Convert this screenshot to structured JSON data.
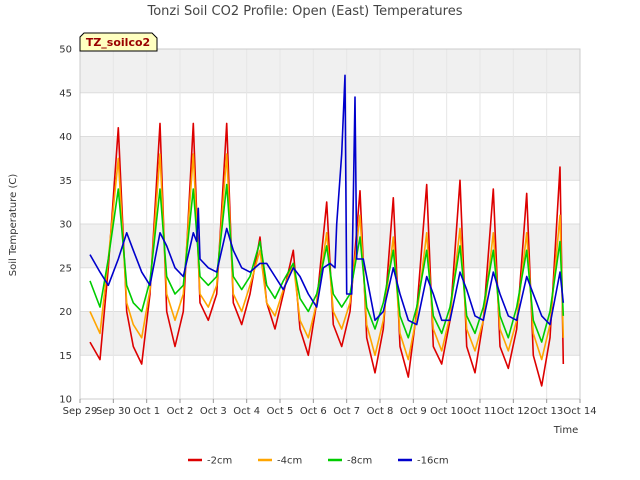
{
  "chart_data": {
    "type": "line",
    "title": "Tonzi Soil CO2 Profile: Open (East) Temperatures",
    "xlabel": "Time",
    "ylabel": "Soil Temperature (C)",
    "badge": "TZ_soilco2",
    "ylim": [
      10,
      50
    ],
    "yticks": [
      10,
      15,
      20,
      25,
      30,
      35,
      40,
      45,
      50
    ],
    "xlim": [
      0,
      15
    ],
    "xticks": [
      {
        "x": 0,
        "label": "Sep 29"
      },
      {
        "x": 1,
        "label": "Sep 30"
      },
      {
        "x": 2,
        "label": "Oct 1"
      },
      {
        "x": 3,
        "label": "Oct 2"
      },
      {
        "x": 4,
        "label": "Oct 3"
      },
      {
        "x": 5,
        "label": "Oct 4"
      },
      {
        "x": 6,
        "label": "Oct 5"
      },
      {
        "x": 7,
        "label": "Oct 6"
      },
      {
        "x": 8,
        "label": "Oct 7"
      },
      {
        "x": 9,
        "label": "Oct 8"
      },
      {
        "x": 10,
        "label": "Oct 9"
      },
      {
        "x": 11,
        "label": "Oct 10"
      },
      {
        "x": 12,
        "label": "Oct 11"
      },
      {
        "x": 13,
        "label": "Oct 12"
      },
      {
        "x": 14,
        "label": "Oct 13"
      },
      {
        "x": 15,
        "label": "Oct 14"
      }
    ],
    "grid": true,
    "legend_position": "bottom",
    "series": [
      {
        "name": "-2cm",
        "color": "#dd0000",
        "x": [
          0.3,
          0.6,
          0.85,
          1.15,
          1.4,
          1.6,
          1.85,
          2.1,
          2.4,
          2.6,
          2.85,
          3.1,
          3.4,
          3.6,
          3.85,
          4.1,
          4.4,
          4.6,
          4.85,
          5.1,
          5.4,
          5.6,
          5.85,
          6.1,
          6.4,
          6.6,
          6.85,
          7.1,
          7.4,
          7.6,
          7.85,
          8.1,
          8.4,
          8.6,
          8.85,
          9.1,
          9.4,
          9.6,
          9.85,
          10.1,
          10.4,
          10.6,
          10.85,
          11.1,
          11.4,
          11.6,
          11.85,
          12.1,
          12.4,
          12.6,
          12.85,
          13.1,
          13.4,
          13.6,
          13.85,
          14.1,
          14.4,
          14.5
        ],
        "y": [
          16.5,
          14.5,
          25,
          41,
          20,
          16,
          14,
          22,
          41.5,
          20,
          16,
          20,
          41.5,
          21,
          19,
          22,
          41.5,
          21,
          18.5,
          22,
          28.5,
          21,
          18,
          22,
          27,
          18,
          15,
          21,
          32.5,
          18.5,
          16,
          20,
          33.8,
          17,
          13,
          18,
          33,
          16,
          12.5,
          20,
          34.5,
          16,
          14,
          19,
          35,
          16,
          13,
          19,
          34,
          16,
          13.5,
          18,
          33.5,
          15,
          11.5,
          17,
          36.5,
          14
        ]
      },
      {
        "name": "-4cm",
        "color": "#ffa500",
        "x": [
          0.3,
          0.6,
          0.85,
          1.15,
          1.4,
          1.6,
          1.85,
          2.1,
          2.4,
          2.6,
          2.85,
          3.1,
          3.4,
          3.6,
          3.85,
          4.1,
          4.4,
          4.6,
          4.85,
          5.1,
          5.4,
          5.6,
          5.85,
          6.1,
          6.4,
          6.6,
          6.85,
          7.1,
          7.4,
          7.6,
          7.85,
          8.1,
          8.4,
          8.6,
          8.85,
          9.1,
          9.4,
          9.6,
          9.85,
          10.1,
          10.4,
          10.6,
          10.85,
          11.1,
          11.4,
          11.6,
          11.85,
          12.1,
          12.4,
          12.6,
          12.85,
          13.1,
          13.4,
          13.6,
          13.85,
          14.1,
          14.4,
          14.5
        ],
        "y": [
          20,
          17.5,
          26,
          37.5,
          21,
          18.5,
          17,
          22.5,
          38,
          22,
          19,
          22,
          38,
          22,
          20.5,
          23,
          38,
          22,
          20,
          23,
          27,
          21,
          19.5,
          22.5,
          25.5,
          19,
          17,
          21,
          29,
          20,
          18,
          21,
          31,
          18.5,
          15,
          19,
          28.5,
          17.5,
          14.5,
          19.5,
          29,
          18,
          15.5,
          19.5,
          29.5,
          18,
          15.5,
          19,
          29,
          18,
          15.5,
          19,
          29,
          17.5,
          14.5,
          18.5,
          31,
          17
        ]
      },
      {
        "name": "-8cm",
        "color": "#00cc00",
        "x": [
          0.3,
          0.6,
          0.85,
          1.15,
          1.4,
          1.6,
          1.85,
          2.1,
          2.4,
          2.6,
          2.85,
          3.1,
          3.4,
          3.6,
          3.85,
          4.1,
          4.4,
          4.6,
          4.85,
          5.1,
          5.4,
          5.6,
          5.85,
          6.1,
          6.4,
          6.6,
          6.85,
          7.1,
          7.4,
          7.6,
          7.85,
          8.1,
          8.4,
          8.6,
          8.85,
          9.1,
          9.4,
          9.6,
          9.85,
          10.1,
          10.4,
          10.6,
          10.85,
          11.1,
          11.4,
          11.6,
          11.85,
          12.1,
          12.4,
          12.6,
          12.85,
          13.1,
          13.4,
          13.6,
          13.85,
          14.1,
          14.4,
          14.5
        ],
        "y": [
          23.5,
          20.5,
          26,
          34,
          23,
          21,
          20,
          23.5,
          34,
          24,
          22,
          23,
          34,
          24,
          23,
          24,
          34.5,
          24,
          22.5,
          24,
          28,
          23,
          21.5,
          23.5,
          25.5,
          21.5,
          20,
          22,
          27.5,
          22,
          20.5,
          22,
          28.5,
          20.5,
          18,
          21,
          27,
          19.5,
          17,
          20.5,
          27,
          19.5,
          17.5,
          20.5,
          27.5,
          19.5,
          17.5,
          20.5,
          27,
          19.5,
          17,
          20.5,
          27,
          19,
          16.5,
          20,
          28,
          19.5
        ]
      },
      {
        "name": "-16cm",
        "color": "#0000cc",
        "x": [
          0.3,
          0.6,
          0.85,
          1.15,
          1.4,
          1.6,
          1.85,
          2.1,
          2.4,
          2.6,
          2.85,
          3.1,
          3.4,
          3.5,
          3.55,
          3.6,
          3.85,
          4.1,
          4.4,
          4.6,
          4.85,
          5.1,
          5.4,
          5.6,
          5.85,
          6.1,
          6.4,
          6.6,
          6.85,
          7.1,
          7.3,
          7.5,
          7.65,
          7.7,
          7.85,
          7.95,
          8.0,
          8.05,
          8.15,
          8.25,
          8.3,
          8.5,
          8.85,
          9.1,
          9.4,
          9.6,
          9.85,
          10.1,
          10.4,
          10.6,
          10.85,
          11.1,
          11.4,
          11.6,
          11.85,
          12.1,
          12.4,
          12.6,
          12.85,
          13.1,
          13.4,
          13.6,
          13.85,
          14.1,
          14.4,
          14.5
        ],
        "y": [
          26.5,
          24.5,
          23,
          26,
          29,
          27,
          24.5,
          23,
          29,
          27.5,
          25,
          24,
          29,
          28,
          31.8,
          26,
          25,
          24.5,
          29.5,
          27,
          25,
          24.5,
          25.5,
          25.5,
          24,
          22.5,
          25,
          24,
          22,
          20.5,
          25,
          25.5,
          25,
          30,
          38,
          47,
          22,
          22,
          22,
          44.5,
          26,
          26,
          19,
          20,
          25,
          22,
          19,
          18.5,
          24,
          22,
          19,
          19,
          24.5,
          22.5,
          19.5,
          19,
          24.5,
          22,
          19.5,
          19,
          24,
          22,
          19.5,
          18.5,
          24.5,
          21
        ]
      }
    ]
  }
}
